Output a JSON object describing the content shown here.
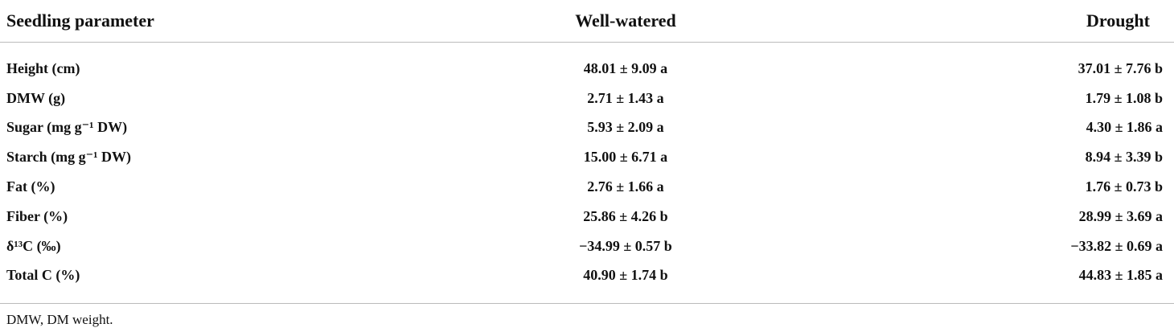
{
  "table": {
    "header": [
      "Seedling parameter",
      "Well-watered",
      "Drought"
    ],
    "rows": [
      [
        "Height (cm)",
        "48.01 ± 9.09 a",
        "37.01 ± 7.76 b"
      ],
      [
        "DMW (g)",
        "2.71 ± 1.43 a",
        "1.79 ± 1.08 b"
      ],
      [
        "Sugar (mg g⁻¹ DW)",
        "5.93 ± 2.09 a",
        "4.30 ± 1.86 a"
      ],
      [
        "Starch (mg g⁻¹ DW)",
        "15.00 ± 6.71 a",
        "8.94 ± 3.39 b"
      ],
      [
        "Fat (%)",
        "2.76 ± 1.66 a",
        "1.76 ± 0.73 b"
      ],
      [
        "Fiber (%)",
        "25.86 ± 4.26 b",
        "28.99 ± 3.69 a"
      ],
      [
        "δ¹³C (‰)",
        "−34.99 ± 0.57 b",
        "−33.82 ± 0.69 a"
      ],
      [
        "Total C (%)",
        "40.90 ± 1.74 b",
        "44.83 ± 1.85 a"
      ]
    ],
    "footnote": "DMW, DM weight."
  }
}
